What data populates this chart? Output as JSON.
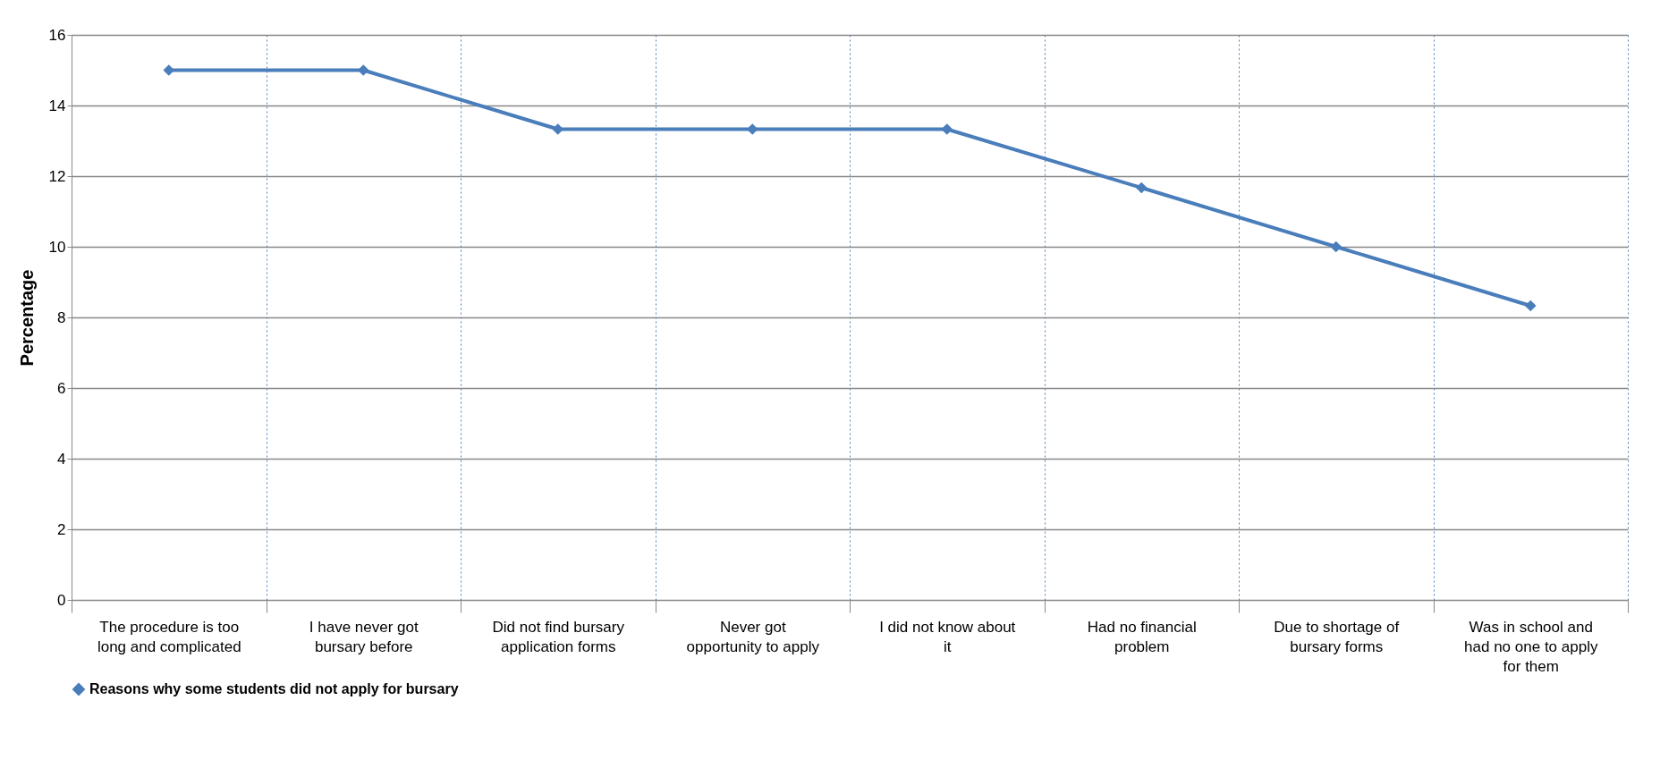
{
  "chart_data": {
    "type": "line",
    "ylabel": "Percentage",
    "categories": [
      "The procedure is too long and complicated",
      "I have never got bursary before",
      "Did not find bursary application forms",
      "Never got opportunity to apply",
      "I did not know about it",
      "Had no financial problem",
      "Due to shortage of bursary forms",
      "Was in school and had no one to apply for them"
    ],
    "series": [
      {
        "name": "Reasons why some students did not apply for bursary",
        "color": "#4a7ebb",
        "values": [
          15,
          15,
          13.33,
          13.33,
          13.33,
          11.67,
          10,
          8.33
        ]
      }
    ],
    "ylim": [
      0,
      16
    ],
    "yticks": [
      0,
      2,
      4,
      6,
      8,
      10,
      12,
      14,
      16
    ],
    "grid": true,
    "legend": "bottom",
    "marker": "diamond",
    "line_style": "solid"
  }
}
